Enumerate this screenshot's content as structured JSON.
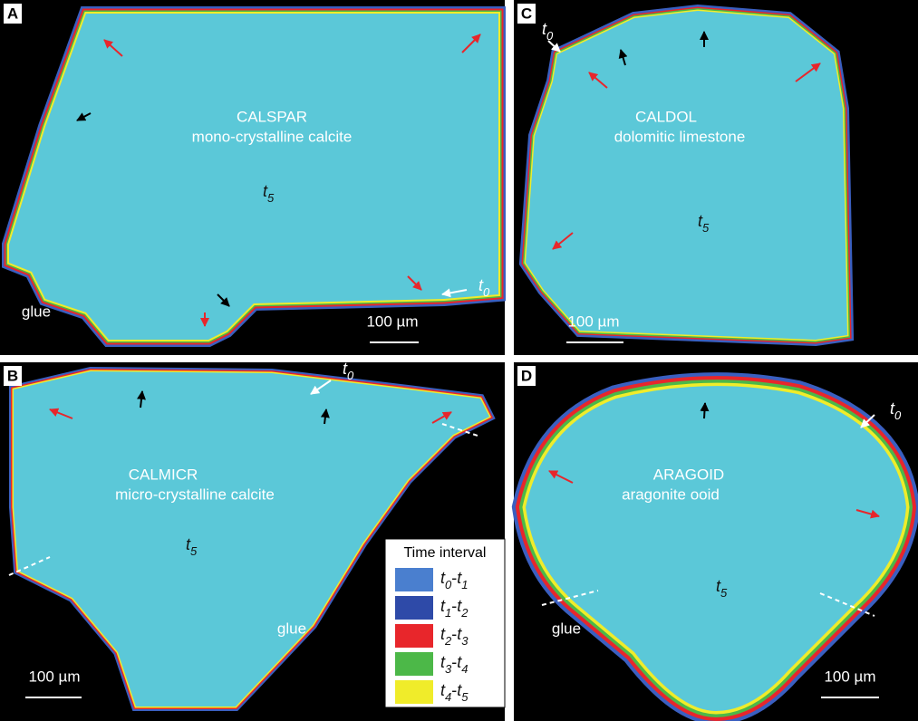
{
  "panels": [
    {
      "letter": "A",
      "name": "CALSPAR",
      "description": "mono-crystalline calcite",
      "interior": {
        "letter": "t",
        "sub": "5"
      },
      "edge": {
        "letter": "t",
        "sub": "0"
      },
      "glue": "glue",
      "scale": "100 µm"
    },
    {
      "letter": "C",
      "name": "CALDOL",
      "description": "dolomitic limestone",
      "interior": {
        "letter": "t",
        "sub": "5"
      },
      "edge": {
        "letter": "t",
        "sub": "0"
      },
      "scale": "100 µm"
    },
    {
      "letter": "B",
      "name": "CALMICR",
      "description": "micro-crystalline calcite",
      "interior": {
        "letter": "t",
        "sub": "5"
      },
      "edge": {
        "letter": "t",
        "sub": "0"
      },
      "glue": "glue",
      "scale": "100 µm"
    },
    {
      "letter": "D",
      "name": "ARAGOID",
      "description": "aragonite ooid",
      "interior": {
        "letter": "t",
        "sub": "5"
      },
      "edge": {
        "letter": "t",
        "sub": "0"
      },
      "glue": "glue",
      "scale": "100 µm"
    }
  ],
  "legend": {
    "title": "Time interval",
    "separator": "-",
    "entries": [
      {
        "from": {
          "letter": "t",
          "sub": "0"
        },
        "to": {
          "letter": "t",
          "sub": "1"
        },
        "color": "#4a7fcf"
      },
      {
        "from": {
          "letter": "t",
          "sub": "1"
        },
        "to": {
          "letter": "t",
          "sub": "2"
        },
        "color": "#2e4aa8"
      },
      {
        "from": {
          "letter": "t",
          "sub": "2"
        },
        "to": {
          "letter": "t",
          "sub": "3"
        },
        "color": "#e8262b"
      },
      {
        "from": {
          "letter": "t",
          "sub": "3"
        },
        "to": {
          "letter": "t",
          "sub": "4"
        },
        "color": "#4cb848"
      },
      {
        "from": {
          "letter": "t",
          "sub": "4"
        },
        "to": {
          "letter": "t",
          "sub": "5"
        },
        "color": "#f0ec2a"
      }
    ]
  }
}
